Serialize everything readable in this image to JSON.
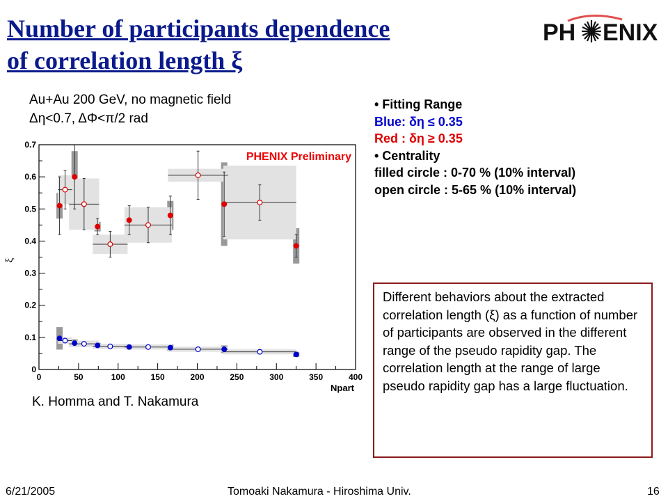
{
  "slide": {
    "title_line1": "Number of participants dependence",
    "title_line2": "of correlation length ξ",
    "logo_left": "PH",
    "logo_right": "ENIX",
    "subtitle_line1": "Au+Au 200 GeV, no magnetic field",
    "subtitle_line2": "Δη<0.7, ΔΦ<π/2 rad",
    "info_lines": [
      "• Fitting Range",
      "Blue: δη ≤ 0.35",
      "Red : δη ≥ 0.35",
      "• Centrality",
      "filled circle : 0-70 % (10% interval)",
      "open circle : 5-65 % (10% interval)"
    ],
    "authors": "K. Homma and T. Nakamura",
    "description": "Different behaviors about the extracted correlation length (ξ) as a function of  number of participants are observed in the different range of the pseudo rapidity gap. The correlation length at the range of large pseudo rapidity gap has a large fluctuation.",
    "footer_date": "6/21/2005",
    "footer_center": "Tomoaki Nakamura - Hiroshima Univ.",
    "footer_page": "16"
  },
  "colors": {
    "title": "#0a1a8c",
    "red_marker": "#dd0000",
    "blue_marker": "#0000cc",
    "preliminary": "#ee0000",
    "box_border": "#8b1a1a",
    "sys_dark": "#999999",
    "sys_light": "#e2e2e2"
  },
  "chart_data": {
    "type": "scatter",
    "title": "",
    "annotation": "PHENIX Preliminary",
    "xlabel": "Npart",
    "ylabel": "ξ",
    "xlim": [
      0,
      400
    ],
    "ylim": [
      0,
      0.7
    ],
    "xticks": [
      0,
      50,
      100,
      150,
      200,
      250,
      300,
      350,
      400
    ],
    "yticks": [
      0,
      0.1,
      0.2,
      0.3,
      0.4,
      0.5,
      0.6,
      0.7
    ],
    "grid": false,
    "series": [
      {
        "range": "red",
        "centrality": "filled",
        "points": [
          {
            "x": 26,
            "y": 0.51,
            "yerr": 0.09,
            "sys": 0.04,
            "xerr": 0
          },
          {
            "x": 45,
            "y": 0.6,
            "yerr": 0.1,
            "sys": 0.08,
            "xerr": 0
          },
          {
            "x": 74,
            "y": 0.445,
            "yerr": 0.025,
            "sys": 0.015,
            "xerr": 0
          },
          {
            "x": 114,
            "y": 0.465,
            "yerr": 0.045,
            "sys": 0.035,
            "xerr": 0
          },
          {
            "x": 166,
            "y": 0.48,
            "yerr": 0.06,
            "sys": 0.045,
            "xerr": 0
          },
          {
            "x": 234,
            "y": 0.515,
            "yerr": 0.1,
            "sys": 0.13,
            "xerr": 0
          },
          {
            "x": 325,
            "y": 0.385,
            "yerr": 0.035,
            "sys": 0.055,
            "xerr": 0
          }
        ]
      },
      {
        "range": "red",
        "centrality": "open",
        "points": [
          {
            "x": 33,
            "y": 0.56,
            "yerr": 0.06,
            "sys": 0.045,
            "xerr": 9
          },
          {
            "x": 57,
            "y": 0.515,
            "yerr": 0.08,
            "sys": 0.08,
            "xerr": 19
          },
          {
            "x": 90,
            "y": 0.39,
            "yerr": 0.04,
            "sys": 0.03,
            "xerr": 22
          },
          {
            "x": 138,
            "y": 0.45,
            "yerr": 0.055,
            "sys": 0.055,
            "xerr": 30
          },
          {
            "x": 201,
            "y": 0.605,
            "yerr": 0.075,
            "sys": 0.02,
            "xerr": 38
          },
          {
            "x": 279,
            "y": 0.52,
            "yerr": 0.055,
            "sys": 0.115,
            "xerr": 46
          }
        ]
      },
      {
        "range": "blue",
        "centrality": "filled",
        "points": [
          {
            "x": 26,
            "y": 0.097,
            "yerr": 0.006,
            "sys": 0.035,
            "xerr": 0
          },
          {
            "x": 45,
            "y": 0.082,
            "yerr": 0.004,
            "sys": 0.012,
            "xerr": 0
          },
          {
            "x": 74,
            "y": 0.075,
            "yerr": 0.003,
            "sys": 0.008,
            "xerr": 0
          },
          {
            "x": 114,
            "y": 0.07,
            "yerr": 0.003,
            "sys": 0.008,
            "xerr": 0
          },
          {
            "x": 166,
            "y": 0.068,
            "yerr": 0.003,
            "sys": 0.01,
            "xerr": 0
          },
          {
            "x": 234,
            "y": 0.063,
            "yerr": 0.003,
            "sys": 0.012,
            "xerr": 0
          },
          {
            "x": 325,
            "y": 0.047,
            "yerr": 0.003,
            "sys": 0.008,
            "xerr": 0
          }
        ]
      },
      {
        "range": "blue",
        "centrality": "open",
        "points": [
          {
            "x": 33,
            "y": 0.09,
            "yerr": 0.004,
            "sys": 0.01,
            "xerr": 9
          },
          {
            "x": 57,
            "y": 0.08,
            "yerr": 0.003,
            "sys": 0.01,
            "xerr": 19
          },
          {
            "x": 90,
            "y": 0.072,
            "yerr": 0.003,
            "sys": 0.008,
            "xerr": 22
          },
          {
            "x": 138,
            "y": 0.07,
            "yerr": 0.003,
            "sys": 0.008,
            "xerr": 30
          },
          {
            "x": 201,
            "y": 0.063,
            "yerr": 0.003,
            "sys": 0.008,
            "xerr": 38
          },
          {
            "x": 279,
            "y": 0.055,
            "yerr": 0.003,
            "sys": 0.008,
            "xerr": 46
          }
        ]
      }
    ]
  }
}
